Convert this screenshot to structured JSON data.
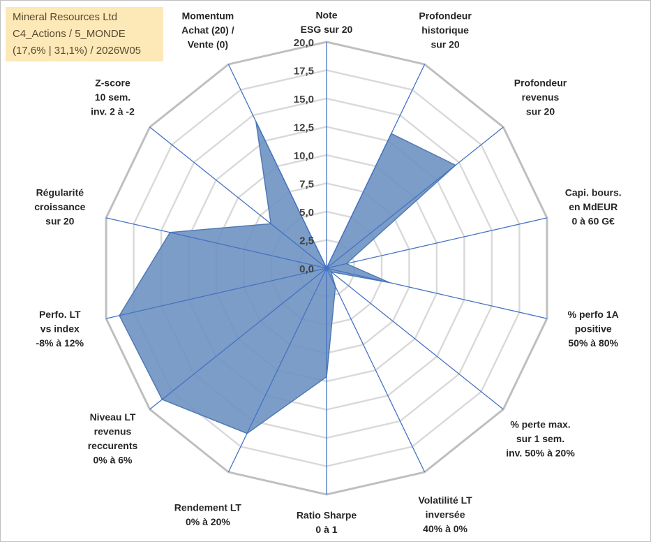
{
  "chart_data": {
    "type": "radar",
    "title_lines": [
      "Mineral Resources Ltd",
      "C4_Actions / 5_MONDE",
      "(17,6% | 31,1%) / 2026W05"
    ],
    "axes": [
      {
        "label": [
          "Note",
          "ESG sur 20"
        ]
      },
      {
        "label": [
          "Profondeur",
          "historique",
          "sur 20"
        ]
      },
      {
        "label": [
          "Profondeur",
          "revenus",
          "sur 20"
        ]
      },
      {
        "label": [
          "Capi. bours.",
          "en MdEUR",
          "0 à 60 G€"
        ]
      },
      {
        "label": [
          "% perfo 1A",
          "positive",
          "50% à 80%"
        ]
      },
      {
        "label": [
          "% perte max.",
          "sur 1 sem.",
          "inv. 50% à 20%"
        ]
      },
      {
        "label": [
          "Volatilité LT",
          "inversée",
          "40% à 0%"
        ]
      },
      {
        "label": [
          "Ratio Sharpe",
          "0 à 1"
        ]
      },
      {
        "label": [
          "Rendement LT",
          "0% à 20%"
        ]
      },
      {
        "label": [
          "Niveau LT",
          "revenus",
          "reccurents",
          "0% à 6%"
        ]
      },
      {
        "label": [
          "Perfo. LT",
          "vs index",
          "-8% à 12%"
        ]
      },
      {
        "label": [
          "Régularité",
          "croissance",
          "sur 20"
        ]
      },
      {
        "label": [
          "Z-score",
          "10 sem.",
          "inv. 2 à -2"
        ]
      },
      {
        "label": [
          "Momentum",
          "Achat (20) /",
          "Vente (0)"
        ]
      }
    ],
    "series": [
      {
        "name": "Mineral Resources Ltd",
        "color": "#4f7ab3",
        "values": [
          0,
          13.2,
          14.6,
          1.8,
          5.7,
          0.5,
          1.8,
          9.6,
          16.2,
          18.6,
          18.8,
          14.2,
          6.3,
          14.4
        ]
      }
    ],
    "rlim": [
      0,
      20
    ],
    "ticks": [
      "0,0",
      "2,5",
      "5,0",
      "7,5",
      "10,0",
      "12,5",
      "15,0",
      "17,5",
      "20,0"
    ],
    "grid": true,
    "colors": {
      "grid": "#d9d9d9",
      "outer": "#bfbfbf",
      "spoke": "#4472c4",
      "fill": "#6a90c0",
      "title_bg": "#fde8b8"
    }
  }
}
